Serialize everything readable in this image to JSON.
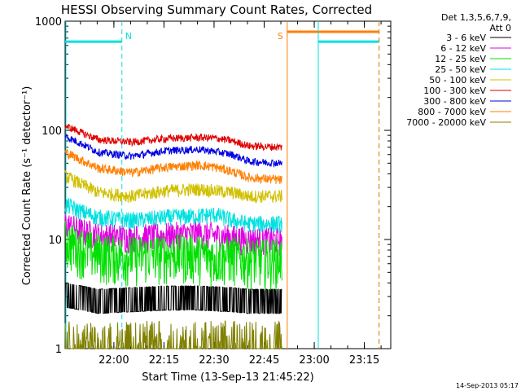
{
  "chart_data": {
    "type": "line",
    "title": "HESSI Observing Summary Count Rates, Corrected",
    "xlabel": "Start Time (13-Sep-13 21:45:22)",
    "ylabel": "Corrected Count Rate (s⁻¹ detector⁻¹)",
    "yscale": "log",
    "ylim": [
      1,
      1000
    ],
    "xlim_minutes": [
      0,
      97.5
    ],
    "x_ticks": [
      {
        "label": "22:00",
        "minutes": 14.6
      },
      {
        "label": "22:15",
        "minutes": 29.6
      },
      {
        "label": "22:30",
        "minutes": 44.6
      },
      {
        "label": "22:45",
        "minutes": 59.6
      },
      {
        "label": "23:00",
        "minutes": 74.6
      },
      {
        "label": "23:15",
        "minutes": 89.6
      }
    ],
    "y_ticks": [
      {
        "label": "1",
        "value": 1
      },
      {
        "label": "10",
        "value": 10
      },
      {
        "label": "100",
        "value": 100
      },
      {
        "label": "1000",
        "value": 1000
      }
    ],
    "legend_header": [
      "Det 1,3,5,6,7,9,",
      "Att 0"
    ],
    "legend_position": "right",
    "series": [
      {
        "name": "3 - 6 keV",
        "color": "#000000",
        "x": [
          0,
          5,
          10,
          20,
          30,
          40,
          50,
          55,
          65
        ],
        "y": [
          3.2,
          3.0,
          2.8,
          2.9,
          3.0,
          3.0,
          2.9,
          2.8,
          2.8
        ]
      },
      {
        "name": "6 - 12 keV",
        "color": "#e000e0",
        "x": [
          0,
          5,
          10,
          20,
          30,
          40,
          45,
          50,
          55,
          65
        ],
        "y": [
          14,
          12,
          11,
          10.5,
          11,
          11.5,
          11,
          10.5,
          10,
          10
        ]
      },
      {
        "name": "12 - 25 keV",
        "color": "#00e000",
        "x": [
          0,
          5,
          10,
          20,
          30,
          40,
          45,
          50,
          55,
          65
        ],
        "y": [
          10,
          8.5,
          7.5,
          7.2,
          7.5,
          7.5,
          7.0,
          7.2,
          6.8,
          6.8
        ]
      },
      {
        "name": "25 - 50 keV",
        "color": "#00e0e0",
        "x": [
          0,
          5,
          10,
          20,
          30,
          40,
          45,
          50,
          55,
          65
        ],
        "y": [
          21,
          18,
          16,
          15,
          16,
          16.5,
          17,
          15,
          14,
          14
        ]
      },
      {
        "name": "50 - 100 keV",
        "color": "#d0c000",
        "x": [
          0,
          5,
          10,
          20,
          30,
          40,
          45,
          50,
          55,
          65
        ],
        "y": [
          38,
          32,
          27,
          25,
          28,
          29,
          28,
          27,
          25,
          25
        ]
      },
      {
        "name": "100 - 300 keV",
        "color": "#e00000",
        "x": [
          0,
          5,
          10,
          20,
          30,
          40,
          45,
          50,
          55,
          65
        ],
        "y": [
          110,
          95,
          82,
          78,
          84,
          86,
          85,
          80,
          72,
          70
        ]
      },
      {
        "name": "300 - 800 keV",
        "color": "#0000e0",
        "x": [
          0,
          5,
          10,
          20,
          30,
          40,
          45,
          50,
          55,
          65
        ],
        "y": [
          88,
          75,
          63,
          58,
          65,
          67,
          64,
          60,
          52,
          50
        ]
      },
      {
        "name": "800 - 7000 keV",
        "color": "#ff7f00",
        "x": [
          0,
          5,
          10,
          20,
          30,
          40,
          45,
          50,
          55,
          65
        ],
        "y": [
          63,
          53,
          45,
          41,
          46,
          48,
          46,
          42,
          37,
          35
        ]
      },
      {
        "name": "7000 - 20000 keV",
        "color": "#808000",
        "x": [
          0,
          5,
          10,
          20,
          30,
          40,
          45,
          50,
          55,
          65
        ],
        "y": [
          1.2,
          1.0,
          1.0,
          1.0,
          1.1,
          1.2,
          1.1,
          1.0,
          1.0,
          1.0
        ]
      }
    ],
    "annotations": [
      {
        "label": "N",
        "color": "#00e0e0",
        "minutes": 17.0
      },
      {
        "label": "S",
        "color": "#ff7f00",
        "minutes": 66.5
      }
    ],
    "overlays": {
      "night_level": 650,
      "night_intervals": [
        [
          0,
          17.0
        ],
        [
          75.8,
          94.0
        ]
      ],
      "saa_level": 800,
      "saa_interval": [
        66.5,
        94.0
      ],
      "cyan_verticals_minutes": [
        17.0,
        75.8,
        94.0
      ],
      "orange_verticals_minutes": [
        66.5,
        94.0
      ]
    },
    "grid": false
  },
  "footer": {
    "timestamp": "14-Sep-2013 05:17"
  }
}
